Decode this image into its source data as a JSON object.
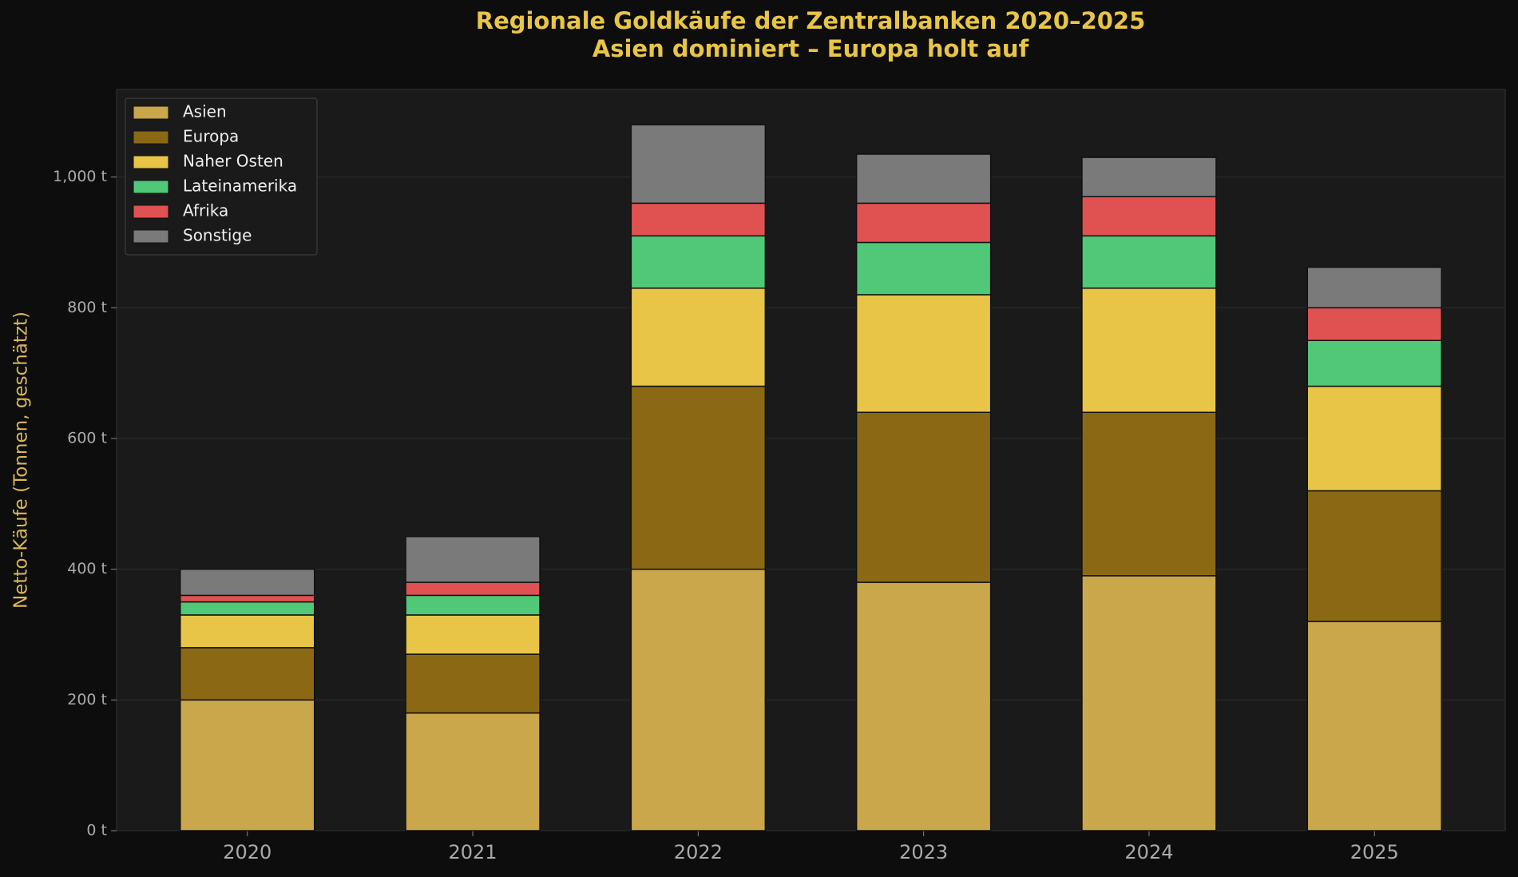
{
  "chart_data": {
    "type": "stacked-bar",
    "title": "Regionale Goldkäufe der Zentralbanken 2020–2025",
    "subtitle": "Asien dominiert – Europa holt auf",
    "y_label": "Netto-Käufe (Tonnen, geschätzt)",
    "categories": [
      "2020",
      "2021",
      "2022",
      "2023",
      "2024",
      "2025"
    ],
    "series": [
      {
        "name": "Asien",
        "color": "#c9a74a",
        "values": [
          200,
          180,
          400,
          380,
          390,
          320
        ]
      },
      {
        "name": "Europa",
        "color": "#8b6914",
        "values": [
          80,
          90,
          280,
          260,
          250,
          200
        ]
      },
      {
        "name": "Naher Osten",
        "color": "#e8c547",
        "values": [
          50,
          60,
          150,
          180,
          190,
          160
        ]
      },
      {
        "name": "Lateinamerika",
        "color": "#50c878",
        "values": [
          20,
          30,
          80,
          80,
          80,
          70
        ]
      },
      {
        "name": "Afrika",
        "color": "#e05252",
        "values": [
          10,
          20,
          50,
          60,
          60,
          50
        ]
      },
      {
        "name": "Sonstige",
        "color": "#7a7a7a",
        "values": [
          40,
          70,
          120,
          75,
          60,
          62
        ]
      }
    ],
    "ylim": [
      0,
      1134
    ],
    "yticks": [
      {
        "value": 0,
        "label": "0 t"
      },
      {
        "value": 200,
        "label": "200 t"
      },
      {
        "value": 400,
        "label": "400 t"
      },
      {
        "value": 600,
        "label": "600 t"
      },
      {
        "value": 800,
        "label": "800 t"
      },
      {
        "value": 1000,
        "label": "1,000 t"
      }
    ],
    "grid": true,
    "legend": "upper-left"
  }
}
